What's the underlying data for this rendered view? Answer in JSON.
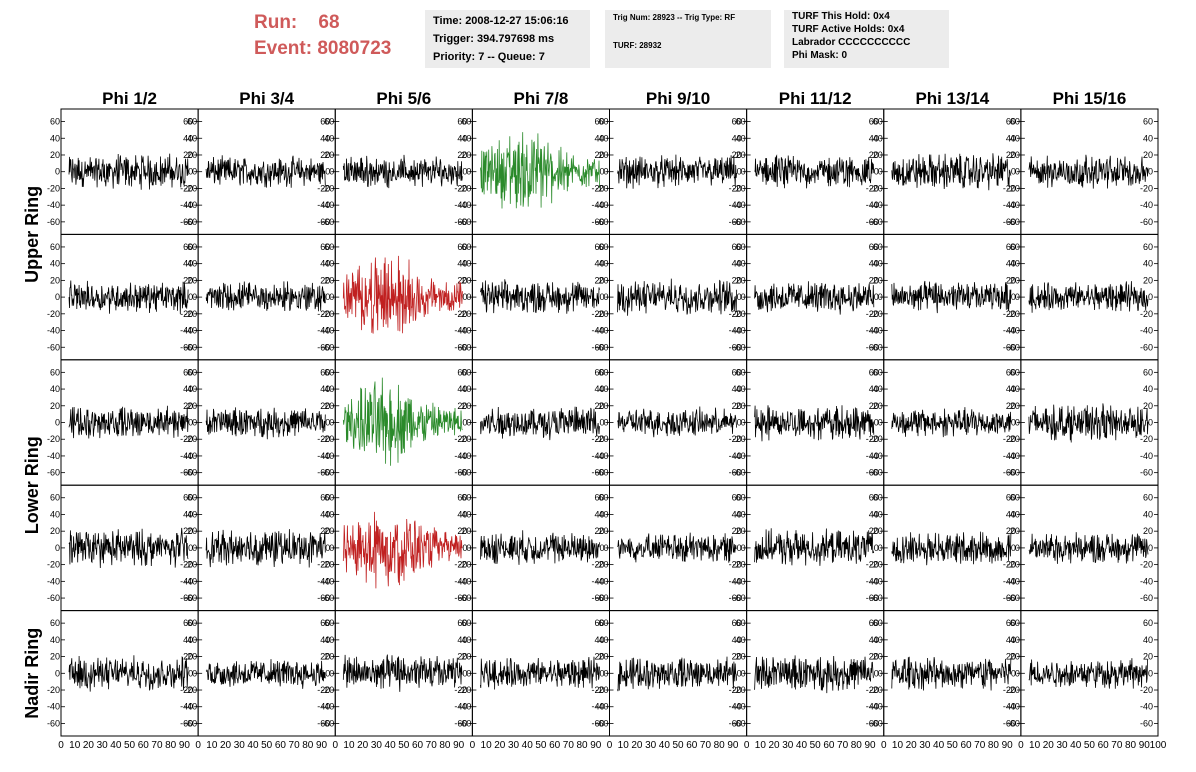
{
  "run_info": {
    "run_label": "Run:",
    "run_value": "68",
    "event_label": "Event:",
    "event_value": "8080723"
  },
  "info_box_1": {
    "time": "Time: 2008-12-27 15:06:16",
    "trigger": "Trigger: 394.797698 ms",
    "priority": "Priority: 7 -- Queue: 7"
  },
  "info_box_2": {
    "trig": "Trig Num: 28923 -- Trig Type: RF",
    "turf": "TURF: 28932"
  },
  "info_box_3": {
    "hold": "TURF This Hold: 0x4",
    "active": "TURF Active Holds: 0x4",
    "labrador": "Labrador CCCCCCCCCC",
    "phimask": "Phi Mask: 0"
  },
  "colors": {
    "run_text": "#cf5a5a",
    "info_bg": "#ececec",
    "trace_default": "#000000",
    "trace_green": "#2a8a2a",
    "trace_red": "#c02020"
  },
  "chart_data": {
    "type": "line",
    "columns": [
      "Phi 1/2",
      "Phi 3/4",
      "Phi 5/6",
      "Phi 7/8",
      "Phi 9/10",
      "Phi 11/12",
      "Phi 13/14",
      "Phi 15/16"
    ],
    "rows": [
      "Upper Ring",
      "Upper Ring",
      "Lower Ring",
      "Lower Ring",
      "Nadir Ring"
    ],
    "ring_labels": [
      "Upper Ring",
      "Lower Ring",
      "Nadir Ring"
    ],
    "ylim": [
      -75,
      75
    ],
    "y_ticks": [
      -60,
      -40,
      -20,
      0,
      20,
      40,
      60
    ],
    "xlim": [
      0,
      100
    ],
    "x_tick_labels": [
      "0",
      "10",
      "20",
      "30",
      "40",
      "50",
      "60",
      "70",
      "80",
      "90",
      "100"
    ],
    "highlighted_panels": [
      {
        "row": 0,
        "col": 3,
        "color": "green"
      },
      {
        "row": 1,
        "col": 2,
        "color": "red"
      },
      {
        "row": 2,
        "col": 2,
        "color": "green"
      },
      {
        "row": 3,
        "col": 2,
        "color": "red"
      }
    ],
    "waveform_summary": "noise-like waveforms, roughly ±30 amplitude; highlighted panels peak near ±60"
  }
}
